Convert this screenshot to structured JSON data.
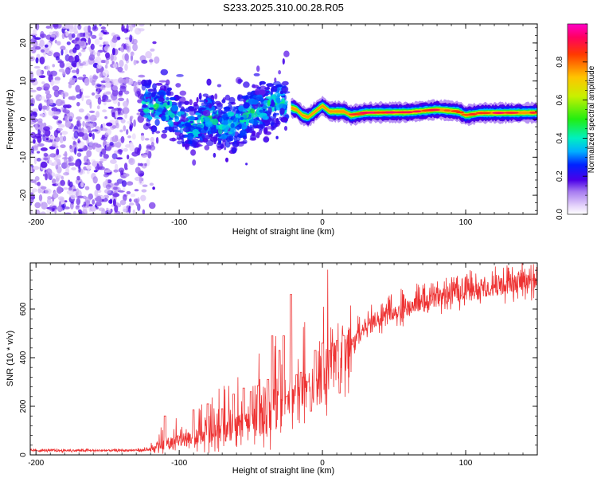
{
  "figure_title": "S233.2025.310.00.28.R05",
  "colors": {
    "snr_line": "#ee3333",
    "axis": "#000000",
    "low_amplitude": "#c7a6f0",
    "mid_amplitude": "#6a1ee6"
  },
  "chart_data": [
    {
      "id": "spectrogram",
      "type": "heatmap",
      "title": "",
      "xlabel": "Height of straight line (km)",
      "ylabel": "Frequency (Hz)",
      "xlim": [
        -204,
        150
      ],
      "ylim": [
        -25,
        25
      ],
      "xticks": [
        -200,
        -100,
        0,
        100
      ],
      "yticks": [
        -20,
        -10,
        0,
        10,
        20
      ],
      "x_minor_step": 10,
      "y_minor_step": 2,
      "colorbar": {
        "label": "Normalized spectral amplitude",
        "range": [
          0,
          1
        ],
        "ticks": [
          0.0,
          0.2,
          0.4,
          0.6,
          0.8
        ],
        "colormap": "rainbow (violet-blue-cyan-green-yellow-red-magenta)"
      },
      "description_data": {
        "noise_region_x": [
          -204,
          -120
        ],
        "noise_amplitude": [
          0.05,
          0.15
        ],
        "transition_region_x": [
          -125,
          -25
        ],
        "transition_center_freq": [
          [
            -125,
            4
          ],
          [
            -110,
            3
          ],
          [
            -100,
            0
          ],
          [
            -90,
            -2
          ],
          [
            -80,
            1
          ],
          [
            -70,
            -2
          ],
          [
            -60,
            -1
          ],
          [
            -50,
            2
          ],
          [
            -40,
            3
          ],
          [
            -30,
            5
          ],
          [
            -25,
            3
          ]
        ],
        "carrier_track": [
          [
            -22,
            3
          ],
          [
            -18,
            2.5
          ],
          [
            -14,
            1
          ],
          [
            -10,
            0.5
          ],
          [
            -5,
            2
          ],
          [
            0,
            3.5
          ],
          [
            5,
            2
          ],
          [
            15,
            2
          ],
          [
            20,
            1
          ],
          [
            30,
            1.7
          ],
          [
            60,
            1.8
          ],
          [
            80,
            2.5
          ],
          [
            95,
            2
          ],
          [
            100,
            1
          ],
          [
            110,
            1.6
          ],
          [
            150,
            1.7
          ]
        ],
        "carrier_peak_amplitude": 0.95
      }
    },
    {
      "id": "snr",
      "type": "line",
      "title": "",
      "xlabel": "Height of straight line (km)",
      "ylabel": "SNR (10 * v/v)",
      "xlim": [
        -204,
        150
      ],
      "ylim": [
        0,
        790
      ],
      "xticks": [
        -200,
        -100,
        0,
        100
      ],
      "yticks": [
        0,
        200,
        400,
        600
      ],
      "x_minor_step": 10,
      "y_minor_step": 40,
      "series": [
        {
          "name": "SNR",
          "color": "#ee3333",
          "trend": [
            [
              -204,
              18
            ],
            [
              -150,
              18
            ],
            [
              -120,
              20
            ],
            [
              -110,
              45
            ],
            [
              -100,
              60
            ],
            [
              -90,
              70
            ],
            [
              -80,
              85
            ],
            [
              -70,
              95
            ],
            [
              -60,
              110
            ],
            [
              -50,
              130
            ],
            [
              -40,
              150
            ],
            [
              -35,
              175
            ],
            [
              -30,
              200
            ],
            [
              -25,
              220
            ],
            [
              -20,
              240
            ],
            [
              -15,
              250
            ],
            [
              -10,
              270
            ],
            [
              -5,
              300
            ],
            [
              0,
              330
            ],
            [
              5,
              360
            ],
            [
              10,
              380
            ],
            [
              15,
              410
            ],
            [
              20,
              450
            ],
            [
              25,
              490
            ],
            [
              30,
              530
            ],
            [
              40,
              565
            ],
            [
              50,
              590
            ],
            [
              60,
              605
            ],
            [
              70,
              625
            ],
            [
              80,
              645
            ],
            [
              90,
              660
            ],
            [
              100,
              670
            ],
            [
              110,
              680
            ],
            [
              120,
              690
            ],
            [
              130,
              700
            ],
            [
              140,
              710
            ],
            [
              150,
              715
            ]
          ],
          "spikes": [
            [
              -110,
              160
            ],
            [
              -90,
              185
            ],
            [
              -80,
              210
            ],
            [
              -70,
              190
            ],
            [
              -62,
              250
            ],
            [
              -55,
              275
            ],
            [
              -50,
              260
            ],
            [
              -45,
              285
            ],
            [
              -38,
              310
            ],
            [
              -35,
              490
            ],
            [
              -30,
              430
            ],
            [
              -27,
              490
            ],
            [
              -25,
              240
            ],
            [
              -22,
              660
            ],
            [
              -18,
              330
            ],
            [
              -15,
              340
            ],
            [
              -10,
              300
            ],
            [
              -5,
              430
            ],
            [
              0,
              460
            ],
            [
              5,
              430
            ],
            [
              10,
              470
            ],
            [
              15,
              490
            ],
            [
              -8,
              180
            ],
            [
              12,
              255
            ]
          ]
        }
      ]
    }
  ]
}
